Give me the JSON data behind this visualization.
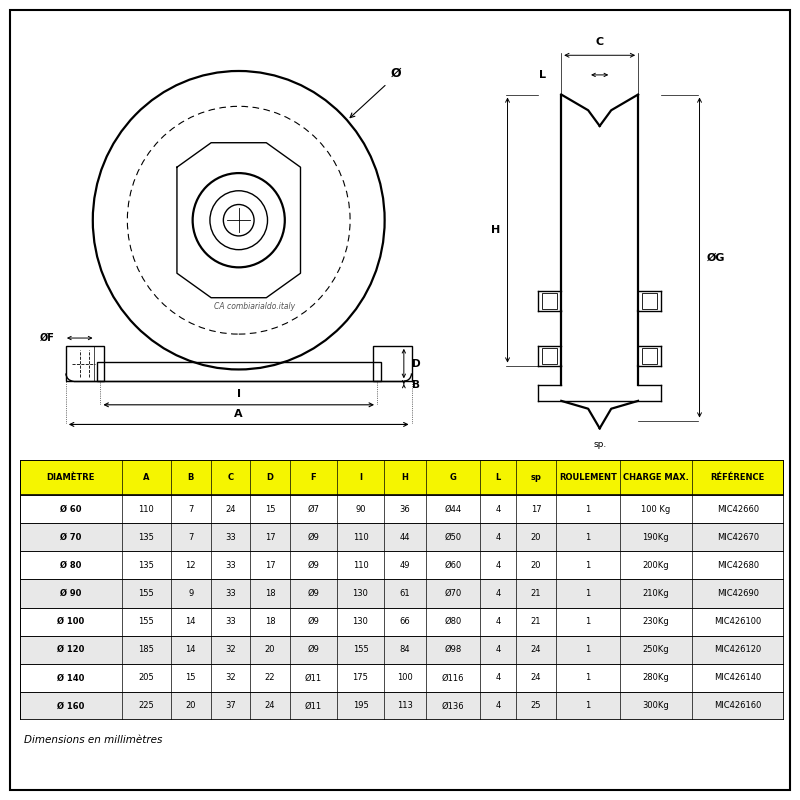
{
  "bg_color": "#ffffff",
  "table_header_bg": "#f5f500",
  "table_row_alt_bg": "#e8e8e8",
  "table_row_bg": "#ffffff",
  "headers": [
    "DIAMÈTRE",
    "A",
    "B",
    "C",
    "D",
    "F",
    "I",
    "H",
    "G",
    "L",
    "sp",
    "ROULEMENT",
    "CHARGE MAX.",
    "RÉFÉRENCE"
  ],
  "rows": [
    [
      "Ø 60",
      "110",
      "7",
      "24",
      "15",
      "Ø7",
      "90",
      "36",
      "Ø44",
      "4",
      "17",
      "1",
      "100 Kg",
      "MIC42660"
    ],
    [
      "Ø 70",
      "135",
      "7",
      "33",
      "17",
      "Ø9",
      "110",
      "44",
      "Ø50",
      "4",
      "20",
      "1",
      "190Kg",
      "MIC42670"
    ],
    [
      "Ø 80",
      "135",
      "12",
      "33",
      "17",
      "Ø9",
      "110",
      "49",
      "Ø60",
      "4",
      "20",
      "1",
      "200Kg",
      "MIC42680"
    ],
    [
      "Ø 90",
      "155",
      "9",
      "33",
      "18",
      "Ø9",
      "130",
      "61",
      "Ø70",
      "4",
      "21",
      "1",
      "210Kg",
      "MIC42690"
    ],
    [
      "Ø 100",
      "155",
      "14",
      "33",
      "18",
      "Ø9",
      "130",
      "66",
      "Ø80",
      "4",
      "21",
      "1",
      "230Kg",
      "MIC426100"
    ],
    [
      "Ø 120",
      "185",
      "14",
      "32",
      "20",
      "Ø9",
      "155",
      "84",
      "Ø98",
      "4",
      "24",
      "1",
      "250Kg",
      "MIC426120"
    ],
    [
      "Ø 140",
      "205",
      "15",
      "32",
      "22",
      "Ø11",
      "175",
      "100",
      "Ø116",
      "4",
      "24",
      "1",
      "280Kg",
      "MIC426140"
    ],
    [
      "Ø 160",
      "225",
      "20",
      "37",
      "24",
      "Ø11",
      "195",
      "113",
      "Ø136",
      "4",
      "25",
      "1",
      "300Kg",
      "MIC426160"
    ]
  ],
  "footnote": "Dimensions en millimètres"
}
